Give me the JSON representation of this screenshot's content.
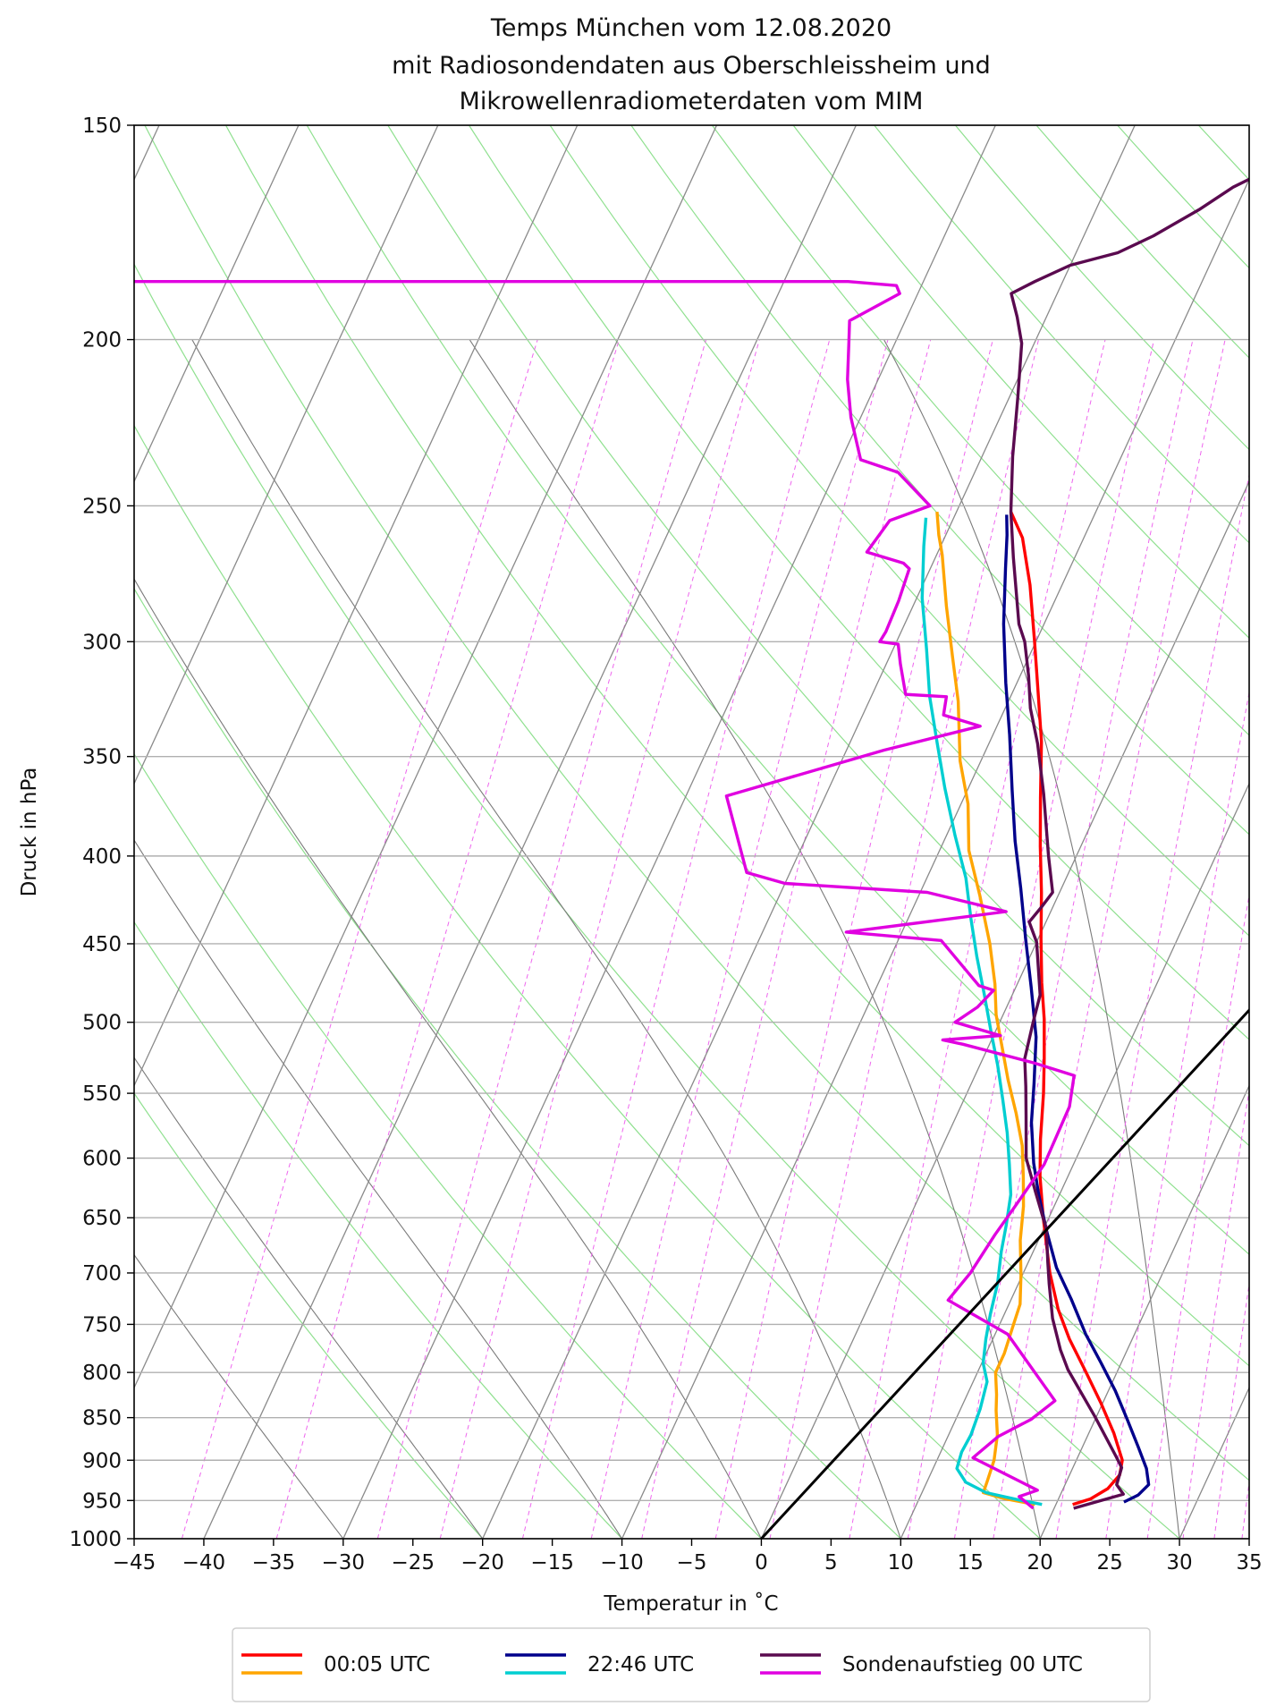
{
  "chart_data": {
    "type": "line",
    "title": [
      "Temps München vom 12.08.2020",
      "mit Radiosondendaten aus Oberschleissheim und",
      "Mikrowellenradiometerdaten vom MIM"
    ],
    "xlabel": "Temperatur in $^\\circ$C",
    "xlabel_display": "Temperatur in ˚C",
    "ylabel": "Druck in hPa",
    "xlim": [
      -45,
      35
    ],
    "ylim": [
      1000,
      150
    ],
    "y_scale": "log",
    "skew_t": true,
    "x_ticks": [
      -45,
      -40,
      -35,
      -30,
      -25,
      -20,
      -15,
      -10,
      -5,
      0,
      5,
      10,
      15,
      20,
      25,
      30,
      35
    ],
    "x_tick_labels": [
      "−45",
      "−40",
      "−35",
      "−30",
      "−25",
      "−20",
      "−15",
      "−10",
      "−5",
      "0",
      "5",
      "10",
      "15",
      "20",
      "25",
      "30",
      "35"
    ],
    "y_ticks": [
      1000,
      950,
      900,
      850,
      800,
      750,
      700,
      650,
      600,
      550,
      500,
      450,
      400,
      350,
      300,
      250,
      200,
      150
    ],
    "grid": true,
    "legend_placement": "bottom-center, below axes",
    "legend": [
      {
        "label": "00:05 UTC",
        "colors": [
          "#ff0000",
          "#ffa500"
        ]
      },
      {
        "label": "22:46 UTC",
        "colors": [
          "#00008b",
          "#00ced1"
        ]
      },
      {
        "label": "Sondenaufstieg 00 UTC",
        "colors": [
          "#5a0a4f",
          "#e000e0"
        ]
      }
    ],
    "series": [
      {
        "label": "00:05 UTC",
        "role": "temperature",
        "color": "#ff0000",
        "points": [
          [
            21.2,
            955
          ],
          [
            22.3,
            948
          ],
          [
            23.2,
            935
          ],
          [
            23.6,
            918
          ],
          [
            23.3,
            900
          ],
          [
            21.8,
            868
          ],
          [
            19.9,
            834
          ],
          [
            17.8,
            800
          ],
          [
            15.5,
            765
          ],
          [
            13.7,
            735
          ],
          [
            11.9,
            700
          ],
          [
            9.6,
            650
          ],
          [
            8.0,
            615
          ],
          [
            6.8,
            585
          ],
          [
            5.5,
            550
          ],
          [
            4.4,
            525
          ],
          [
            3.1,
            498
          ],
          [
            1.7,
            474
          ],
          [
            0.2,
            447
          ],
          [
            -1.3,
            420
          ],
          [
            -2.9,
            395
          ],
          [
            -4.5,
            370
          ],
          [
            -6.3,
            343
          ],
          [
            -8.0,
            323
          ],
          [
            -10.1,
            300
          ],
          [
            -12.3,
            278
          ],
          [
            -14.4,
            261
          ],
          [
            -16.1,
            252
          ]
        ]
      },
      {
        "label": "00:05 UTC",
        "role": "dewpoint",
        "color": "#ffa500",
        "points": [
          [
            18.5,
            955
          ],
          [
            16.2,
            948
          ],
          [
            14.4,
            940
          ],
          [
            14.3,
            925
          ],
          [
            14.1,
            900
          ],
          [
            13.5,
            870
          ],
          [
            12.6,
            842
          ],
          [
            12.1,
            824
          ],
          [
            11.3,
            800
          ],
          [
            11.3,
            780
          ],
          [
            11.0,
            750
          ],
          [
            10.8,
            730
          ],
          [
            9.9,
            702
          ],
          [
            8.7,
            670
          ],
          [
            7.8,
            640
          ],
          [
            6.8,
            615
          ],
          [
            5.7,
            590
          ],
          [
            4.2,
            565
          ],
          [
            2.5,
            540
          ],
          [
            1.2,
            520
          ],
          [
            -0.5,
            495
          ],
          [
            -1.6,
            475
          ],
          [
            -3.3,
            450
          ],
          [
            -5.6,
            422
          ],
          [
            -7.9,
            397
          ],
          [
            -9.5,
            373
          ],
          [
            -11.5,
            352
          ],
          [
            -13.6,
            325
          ],
          [
            -15.5,
            306
          ],
          [
            -17.6,
            286
          ],
          [
            -19.6,
            267
          ],
          [
            -20.5,
            260
          ],
          [
            -21.4,
            252
          ]
        ]
      },
      {
        "label": "22:46 UTC",
        "role": "temperature",
        "color": "#00008b",
        "points": [
          [
            24.8,
            952
          ],
          [
            25.6,
            943
          ],
          [
            26.0,
            930
          ],
          [
            25.3,
            910
          ],
          [
            24.0,
            884
          ],
          [
            22.3,
            852
          ],
          [
            20.5,
            820
          ],
          [
            18.5,
            789
          ],
          [
            16.5,
            760
          ],
          [
            14.3,
            725
          ],
          [
            12.2,
            695
          ],
          [
            10.3,
            662
          ],
          [
            8.5,
            630
          ],
          [
            7.1,
            604
          ],
          [
            5.6,
            572
          ],
          [
            4.5,
            543
          ],
          [
            3.1,
            510
          ],
          [
            1.1,
            477
          ],
          [
            -0.9,
            447
          ],
          [
            -2.9,
            418
          ],
          [
            -4.9,
            392
          ],
          [
            -6.8,
            366
          ],
          [
            -8.8,
            340
          ],
          [
            -10.8,
            317
          ],
          [
            -12.9,
            293
          ],
          [
            -14.6,
            272
          ],
          [
            -15.6,
            260
          ],
          [
            -16.3,
            253
          ]
        ]
      },
      {
        "label": "22:46 UTC",
        "role": "dewpoint",
        "color": "#00ced1",
        "points": [
          [
            19.0,
            955
          ],
          [
            17.4,
            950
          ],
          [
            14.6,
            940
          ],
          [
            12.8,
            927
          ],
          [
            11.7,
            910
          ],
          [
            11.5,
            890
          ],
          [
            11.6,
            870
          ],
          [
            11.4,
            840
          ],
          [
            11.0,
            810
          ],
          [
            10.1,
            790
          ],
          [
            9.5,
            765
          ],
          [
            9.0,
            740
          ],
          [
            8.5,
            710
          ],
          [
            7.7,
            680
          ],
          [
            7.2,
            657
          ],
          [
            6.5,
            630
          ],
          [
            5.4,
            605
          ],
          [
            4.2,
            580
          ],
          [
            2.8,
            555
          ],
          [
            1.3,
            530
          ],
          [
            -0.4,
            505
          ],
          [
            -2.0,
            482
          ],
          [
            -3.8,
            458
          ],
          [
            -5.5,
            435
          ],
          [
            -7.2,
            412
          ],
          [
            -9.4,
            389
          ],
          [
            -11.7,
            365
          ],
          [
            -13.7,
            344
          ],
          [
            -15.8,
            323
          ],
          [
            -17.6,
            303
          ],
          [
            -19.6,
            283
          ],
          [
            -21.2,
            264
          ],
          [
            -22.0,
            254
          ]
        ]
      },
      {
        "label": "Sondenaufstieg 00 UTC",
        "role": "temperature",
        "color": "#5a0a4f",
        "points": [
          [
            21.4,
            960
          ],
          [
            24.5,
            942
          ],
          [
            23.7,
            930
          ],
          [
            23.5,
            909
          ],
          [
            22.7,
            895
          ],
          [
            19.9,
            849
          ],
          [
            16.4,
            797
          ],
          [
            15.2,
            776
          ],
          [
            13.6,
            744
          ],
          [
            12.2,
            710
          ],
          [
            11.4,
            690
          ],
          [
            10.2,
            660
          ],
          [
            8.2,
            628
          ],
          [
            6.4,
            600
          ],
          [
            5.0,
            567
          ],
          [
            4.0,
            545
          ],
          [
            3.0,
            525
          ],
          [
            2.4,
            500
          ],
          [
            2.0,
            482
          ],
          [
            0.0,
            449
          ],
          [
            -1.2,
            437
          ],
          [
            -0.8,
            428
          ],
          [
            -0.5,
            420
          ],
          [
            -2.0,
            400
          ],
          [
            -4.4,
            368
          ],
          [
            -6.5,
            344
          ],
          [
            -8.2,
            328
          ],
          [
            -9.4,
            314
          ],
          [
            -10.8,
            300
          ],
          [
            -11.8,
            293
          ],
          [
            -14.4,
            268
          ],
          [
            -16.1,
            252
          ],
          [
            -17.8,
            234
          ],
          [
            -19.4,
            216
          ],
          [
            -20.9,
            201
          ],
          [
            -22.1,
            194
          ],
          [
            -23.3,
            188
          ],
          [
            -22.0,
            185
          ],
          [
            -20.0,
            181
          ],
          [
            -17.0,
            178
          ],
          [
            -15.0,
            174
          ],
          [
            -12.6,
            168
          ],
          [
            -10.9,
            163
          ],
          [
            -8.3,
            158
          ],
          [
            -7.2,
            154
          ],
          [
            -6.7,
            150
          ]
        ]
      },
      {
        "label": "Sondenaufstieg 00 UTC",
        "role": "dewpoint",
        "color": "#e000e0",
        "points": [
          [
            18.5,
            960
          ],
          [
            17.1,
            945
          ],
          [
            18.2,
            937
          ],
          [
            12.5,
            897
          ],
          [
            13.6,
            872
          ],
          [
            15.4,
            852
          ],
          [
            16.5,
            831
          ],
          [
            10.9,
            760
          ],
          [
            5.5,
            726
          ],
          [
            6.2,
            700
          ],
          [
            6.7,
            665
          ],
          [
            7.2,
            640
          ],
          [
            7.9,
            605
          ],
          [
            7.8,
            560
          ],
          [
            7.1,
            537
          ],
          [
            3.8,
            528
          ],
          [
            -1.9,
            515
          ],
          [
            -3.5,
            512
          ],
          [
            0.5,
            509
          ],
          [
            -3.2,
            500
          ],
          [
            -2.1,
            490
          ],
          [
            -1.5,
            479
          ],
          [
            -2.7,
            476
          ],
          [
            -6.9,
            448
          ],
          [
            -14.0,
            443
          ],
          [
            -3.2,
            431
          ],
          [
            -9.5,
            420
          ],
          [
            -20.0,
            415
          ],
          [
            -23.1,
            409
          ],
          [
            -27.1,
            369
          ],
          [
            -17.3,
            347
          ],
          [
            -11.2,
            336
          ],
          [
            -14.2,
            331
          ],
          [
            -14.6,
            323
          ],
          [
            -17.6,
            322
          ],
          [
            -19.0,
            309
          ],
          [
            -19.8,
            301
          ],
          [
            -21.2,
            300
          ],
          [
            -21.1,
            296
          ],
          [
            -21.2,
            284
          ],
          [
            -21.5,
            272
          ],
          [
            -22.1,
            270
          ],
          [
            -25.1,
            266
          ],
          [
            -24.5,
            255
          ],
          [
            -22.1,
            250
          ],
          [
            -25.5,
            239
          ],
          [
            -28.6,
            235
          ],
          [
            -30.7,
            222
          ],
          [
            -32.2,
            211
          ],
          [
            -33.3,
            201
          ],
          [
            -34.0,
            195
          ],
          [
            -31.3,
            188
          ],
          [
            -31.8,
            186
          ],
          [
            -35.4,
            185
          ],
          [
            -90.0,
            185
          ]
        ]
      },
      {
        "label": "",
        "role": "reference",
        "color": "#000000",
        "points": [
          [
            0,
            1000
          ],
          [
            35,
            242
          ]
        ]
      }
    ]
  }
}
